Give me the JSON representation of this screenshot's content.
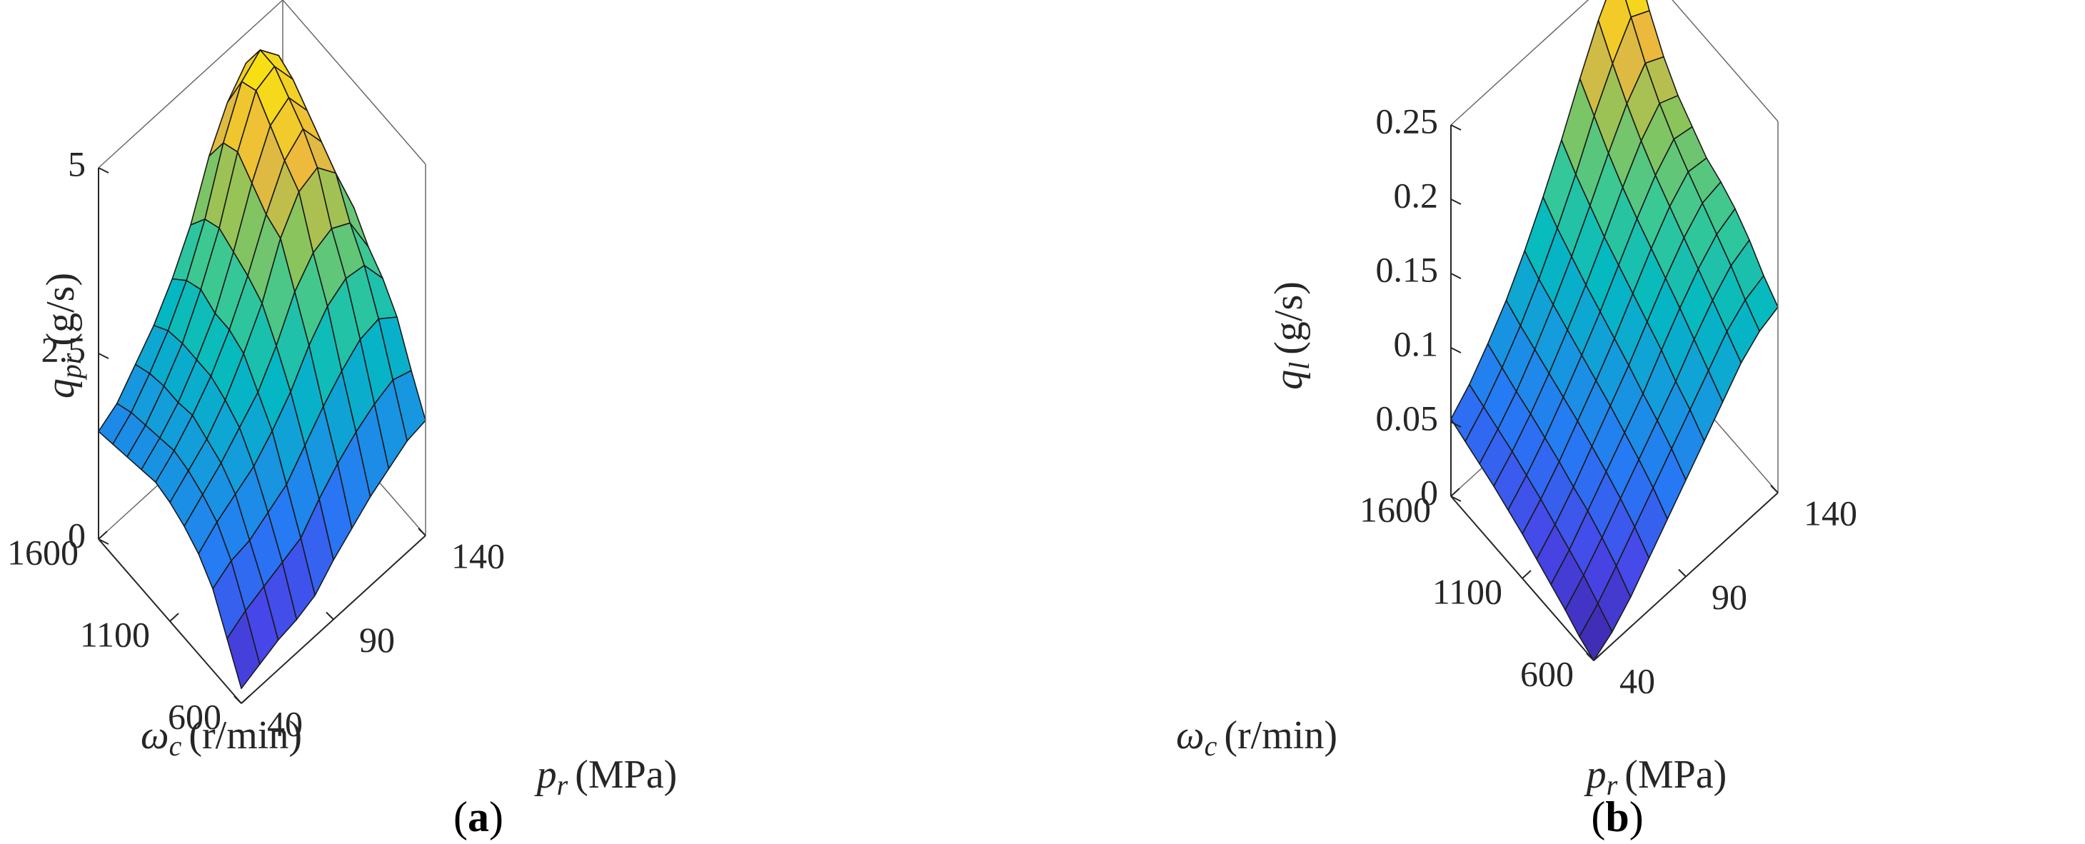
{
  "chart_data": [
    {
      "type": "surface",
      "panel_label": "a",
      "zlabel": {
        "symbol": "q",
        "subscript": "pr",
        "unit": "(g/s)"
      },
      "xlabel": {
        "symbol": "ω",
        "subscript": "c",
        "unit": "(r/min)"
      },
      "ylabel": {
        "symbol": "p",
        "subscript": "r",
        "unit": "(MPa)"
      },
      "x_ticks": [
        "600",
        "1100",
        "1600"
      ],
      "y_ticks": [
        "40",
        "90",
        "140"
      ],
      "z_ticks": [
        "0",
        "2.5",
        "5"
      ],
      "xlim": [
        600,
        1600
      ],
      "ylim": [
        40,
        140
      ],
      "zlim": [
        0,
        5
      ],
      "omega_c": [
        600,
        700,
        800,
        900,
        1000,
        1100,
        1200,
        1300,
        1400,
        1500,
        1600
      ],
      "p_r": [
        40,
        50,
        60,
        70,
        80,
        90,
        100,
        110,
        120,
        130,
        140
      ],
      "q": [
        [
          0.2,
          0.3,
          0.4,
          0.45,
          0.55,
          0.8,
          1.0,
          1.2,
          1.35,
          1.5,
          1.55
        ],
        [
          0.65,
          0.8,
          0.9,
          1.0,
          1.1,
          1.4,
          1.65,
          1.85,
          2.0,
          2.1,
          2.0
        ],
        [
          1.1,
          1.25,
          1.3,
          1.45,
          1.6,
          1.9,
          2.2,
          2.45,
          2.65,
          2.7,
          2.5
        ],
        [
          1.35,
          1.55,
          1.7,
          1.85,
          2.1,
          2.4,
          2.8,
          3.1,
          3.25,
          3.2,
          2.8
        ],
        [
          1.5,
          1.7,
          1.9,
          2.15,
          2.4,
          2.8,
          3.3,
          3.6,
          3.7,
          3.55,
          3.0
        ],
        [
          1.6,
          1.8,
          2.0,
          2.3,
          2.7,
          3.15,
          3.8,
          4.2,
          4.3,
          4.0,
          3.3
        ],
        [
          1.65,
          1.85,
          2.1,
          2.4,
          2.8,
          3.3,
          3.9,
          4.4,
          4.6,
          4.2,
          3.4
        ],
        [
          1.6,
          1.8,
          2.05,
          2.4,
          2.8,
          3.4,
          4.1,
          4.65,
          4.8,
          4.4,
          3.5
        ],
        [
          1.55,
          1.75,
          2.05,
          2.4,
          2.9,
          3.5,
          4.3,
          4.9,
          5.0,
          4.6,
          3.6
        ],
        [
          1.5,
          1.7,
          2.0,
          2.35,
          2.8,
          3.4,
          4.2,
          4.8,
          5.0,
          4.7,
          3.7
        ],
        [
          1.45,
          1.6,
          1.9,
          2.2,
          2.6,
          3.1,
          3.8,
          4.3,
          4.6,
          4.4,
          3.7
        ]
      ]
    },
    {
      "type": "surface",
      "panel_label": "b",
      "zlabel": {
        "symbol": "q",
        "subscript": "l",
        "unit": "(g/s)"
      },
      "xlabel": {
        "symbol": "ω",
        "subscript": "c",
        "unit": "(r/min)"
      },
      "ylabel": {
        "symbol": "p",
        "subscript": "r",
        "unit": "(MPa)"
      },
      "x_ticks": [
        "600",
        "1100",
        "1600"
      ],
      "y_ticks": [
        "40",
        "90",
        "140"
      ],
      "z_ticks": [
        "0",
        "0.05",
        "0.1",
        "0.15",
        "0.2",
        "0.25"
      ],
      "xlim": [
        600,
        1600
      ],
      "ylim": [
        40,
        140
      ],
      "zlim": [
        0,
        0.25
      ],
      "omega_c": [
        600,
        700,
        800,
        900,
        1000,
        1100,
        1200,
        1300,
        1400,
        1500,
        1600
      ],
      "p_r": [
        40,
        50,
        60,
        70,
        80,
        90,
        100,
        110,
        120,
        130,
        140
      ],
      "q": [
        [
          0.0,
          0.008,
          0.02,
          0.035,
          0.05,
          0.065,
          0.08,
          0.095,
          0.11,
          0.12,
          0.125
        ],
        [
          0.005,
          0.016,
          0.03,
          0.045,
          0.06,
          0.075,
          0.09,
          0.105,
          0.12,
          0.13,
          0.135
        ],
        [
          0.012,
          0.024,
          0.038,
          0.053,
          0.068,
          0.083,
          0.098,
          0.115,
          0.13,
          0.142,
          0.148
        ],
        [
          0.018,
          0.03,
          0.045,
          0.06,
          0.075,
          0.09,
          0.108,
          0.125,
          0.14,
          0.152,
          0.158
        ],
        [
          0.024,
          0.036,
          0.05,
          0.066,
          0.082,
          0.098,
          0.116,
          0.134,
          0.15,
          0.162,
          0.165
        ],
        [
          0.03,
          0.042,
          0.056,
          0.072,
          0.088,
          0.105,
          0.124,
          0.143,
          0.16,
          0.172,
          0.17
        ],
        [
          0.035,
          0.047,
          0.061,
          0.077,
          0.094,
          0.112,
          0.132,
          0.152,
          0.17,
          0.183,
          0.18
        ],
        [
          0.04,
          0.052,
          0.066,
          0.082,
          0.1,
          0.119,
          0.14,
          0.162,
          0.182,
          0.196,
          0.19
        ],
        [
          0.044,
          0.056,
          0.07,
          0.087,
          0.106,
          0.127,
          0.15,
          0.174,
          0.196,
          0.212,
          0.205
        ],
        [
          0.048,
          0.06,
          0.075,
          0.092,
          0.112,
          0.135,
          0.16,
          0.188,
          0.212,
          0.232,
          0.225
        ],
        [
          0.052,
          0.064,
          0.08,
          0.098,
          0.12,
          0.145,
          0.172,
          0.202,
          0.23,
          0.252,
          0.25
        ]
      ]
    }
  ]
}
